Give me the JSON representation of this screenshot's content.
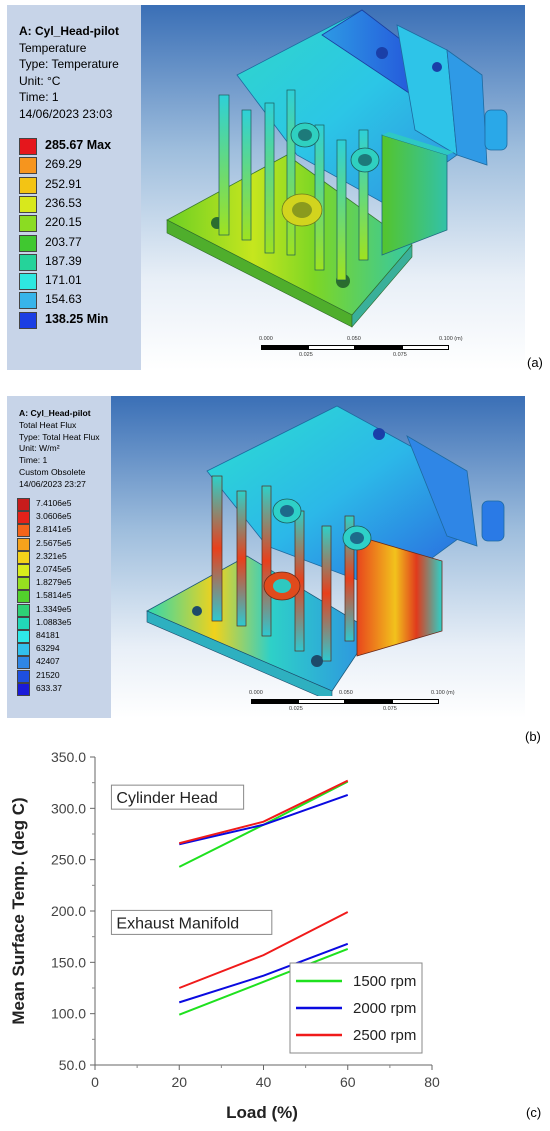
{
  "panel_a": {
    "label": "(a)",
    "info": [
      "A: Cyl_Head-pilot",
      "Temperature",
      "Type: Temperature",
      "Unit: °C",
      "Time: 1",
      "14/06/2023 23:03"
    ],
    "legend": [
      {
        "text": "285.67 Max",
        "color": "#e5161c",
        "bold": true
      },
      {
        "text": "269.29",
        "color": "#f6951e"
      },
      {
        "text": "252.91",
        "color": "#f3c414"
      },
      {
        "text": "236.53",
        "color": "#d8e81c"
      },
      {
        "text": "220.15",
        "color": "#8bdc22"
      },
      {
        "text": "203.77",
        "color": "#40c830"
      },
      {
        "text": "187.39",
        "color": "#25d39a"
      },
      {
        "text": "171.01",
        "color": "#2ee8e0"
      },
      {
        "text": "154.63",
        "color": "#38b4ea"
      },
      {
        "text": "138.25 Min",
        "color": "#1b3ee3",
        "bold": true
      }
    ],
    "ruler": {
      "top": [
        "0.000",
        "0.050",
        "0.100 (m)"
      ],
      "bottom": [
        "0.025",
        "0.075"
      ]
    }
  },
  "panel_b": {
    "label": "(b)",
    "info": [
      "A: Cyl_Head-pilot",
      "Total Heat Flux",
      "Type: Total Heat Flux",
      "Unit: W/m²",
      "Time: 1",
      "Custom Obsolete",
      "14/06/2023 23:27"
    ],
    "legend": [
      {
        "text": "7.4106e5",
        "color": "#c81c1c"
      },
      {
        "text": "3.0606e5",
        "color": "#e5221a"
      },
      {
        "text": "2.8141e5",
        "color": "#f3641a"
      },
      {
        "text": "2.5675e5",
        "color": "#f6a21c"
      },
      {
        "text": "2.321e5",
        "color": "#f3d21a"
      },
      {
        "text": "2.0745e5",
        "color": "#d8ec1c"
      },
      {
        "text": "1.8279e5",
        "color": "#96e020"
      },
      {
        "text": "1.5814e5",
        "color": "#52d02c"
      },
      {
        "text": "1.3349e5",
        "color": "#2ed076"
      },
      {
        "text": "1.0883e5",
        "color": "#22d8b8"
      },
      {
        "text": "84181",
        "color": "#2ee8e8"
      },
      {
        "text": "63294",
        "color": "#32c0ec"
      },
      {
        "text": "42407",
        "color": "#2f86e6"
      },
      {
        "text": "21520",
        "color": "#1e4fe0"
      },
      {
        "text": "633.37",
        "color": "#1a1ad8"
      }
    ],
    "ruler": {
      "top": [
        "0.000",
        "0.050",
        "0.100 (m)"
      ],
      "bottom": [
        "0.025",
        "0.075"
      ]
    }
  },
  "chart_data": {
    "type": "line",
    "label": "(c)",
    "xlabel": "Load (%)",
    "ylabel": "Mean Surface Temp. (deg C)",
    "xlim": [
      0,
      80
    ],
    "ylim": [
      50,
      350
    ],
    "xticks": [
      "0",
      "20",
      "40",
      "60",
      "80"
    ],
    "yticks": [
      "50.0",
      "100.0",
      "150.0",
      "200.0",
      "250.0",
      "300.0",
      "350.0"
    ],
    "annotations": [
      {
        "text": "Cylinder Head",
        "x": 2,
        "y": 307
      },
      {
        "text": "Exhaust Manifold",
        "x": 2,
        "y": 185
      }
    ],
    "legend_position": "bottom-right",
    "series": [
      {
        "name": "1500 rpm",
        "color": "#1ee11e",
        "group": "Cylinder Head",
        "x": [
          20,
          40,
          60
        ],
        "y": [
          243,
          284,
          326
        ]
      },
      {
        "name": "2000 rpm",
        "color": "#0a0ae0",
        "group": "Cylinder Head",
        "x": [
          20,
          40,
          60
        ],
        "y": [
          265,
          284,
          313
        ]
      },
      {
        "name": "2500 rpm",
        "color": "#f01a1a",
        "group": "Cylinder Head",
        "x": [
          20,
          40,
          60
        ],
        "y": [
          266,
          287,
          327
        ]
      },
      {
        "name": "1500 rpm",
        "color": "#1ee11e",
        "group": "Exhaust Manifold",
        "x": [
          20,
          40,
          60
        ],
        "y": [
          99,
          131,
          163
        ]
      },
      {
        "name": "2000 rpm",
        "color": "#0a0ae0",
        "group": "Exhaust Manifold",
        "x": [
          20,
          40,
          60
        ],
        "y": [
          111,
          137,
          168
        ]
      },
      {
        "name": "2500 rpm",
        "color": "#f01a1a",
        "group": "Exhaust Manifold",
        "x": [
          20,
          40,
          60
        ],
        "y": [
          125,
          157,
          199
        ]
      }
    ],
    "legend": [
      {
        "name": "1500 rpm",
        "color": "#1ee11e"
      },
      {
        "name": "2000 rpm",
        "color": "#0a0ae0"
      },
      {
        "name": "2500 rpm",
        "color": "#f01a1a"
      }
    ]
  }
}
